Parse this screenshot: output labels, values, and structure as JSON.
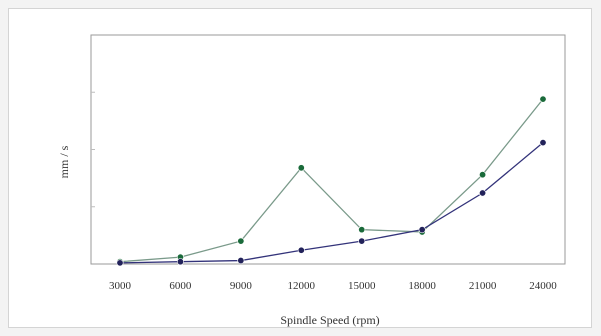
{
  "chart_data": {
    "type": "line",
    "title": "",
    "xlabel": "Spindle Speed (rpm)",
    "ylabel": "mm / s",
    "categories": [
      "3000",
      "6000",
      "9000",
      "12000",
      "15000",
      "18000",
      "21000",
      "24000"
    ],
    "ylim": [
      0,
      1
    ],
    "y_tick_labels_shown": false,
    "grid": false,
    "legend": "none",
    "series": [
      {
        "color": "#7a9a8a",
        "marker_color": "#1a6a3a",
        "values": [
          0.01,
          0.03,
          0.1,
          0.42,
          0.15,
          0.14,
          0.39,
          0.72
        ]
      },
      {
        "color": "#33337a",
        "marker_color": "#22225a",
        "values": [
          0.005,
          0.01,
          0.015,
          0.06,
          0.1,
          0.15,
          0.31,
          0.53
        ]
      }
    ]
  }
}
